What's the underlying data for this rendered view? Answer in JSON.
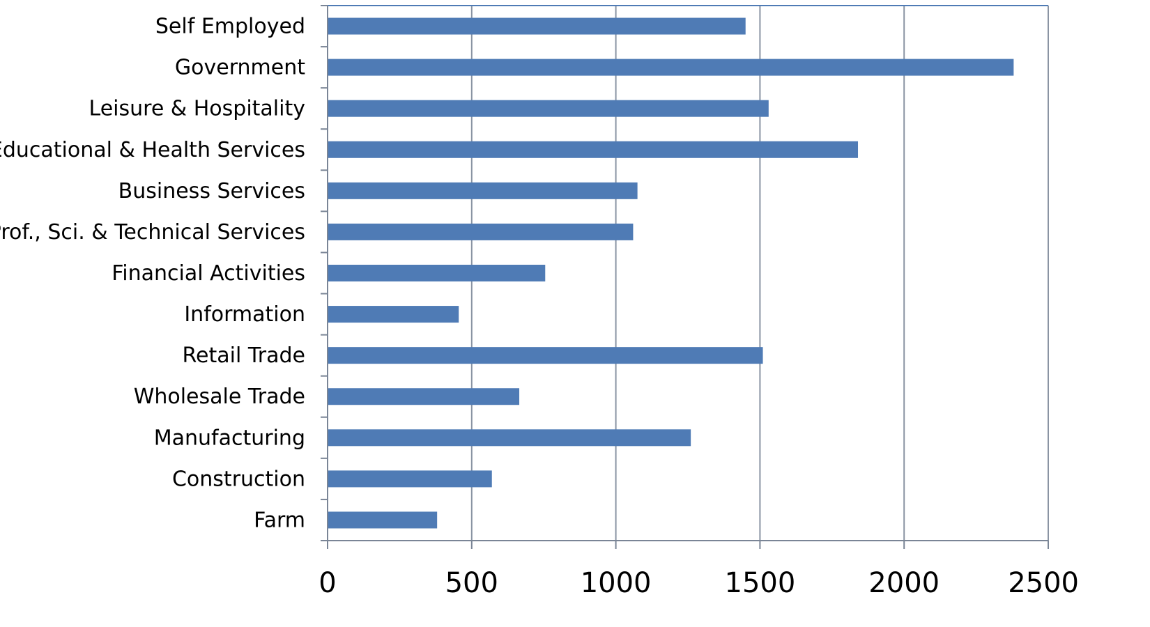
{
  "chart_data": {
    "type": "bar",
    "orientation": "horizontal",
    "title": "",
    "xlabel": "",
    "ylabel": "",
    "categories": [
      "Self Employed",
      "Government",
      "Leisure & Hospitality",
      "Educational & Health Services",
      "Business Services",
      "Prof., Sci. & Technical Services",
      "Financial Activities",
      "Information",
      "Retail Trade",
      "Wholesale Trade",
      "Manufacturing",
      "Construction",
      "Farm"
    ],
    "values": [
      1450,
      2380,
      1530,
      1840,
      1075,
      1060,
      755,
      455,
      1510,
      665,
      1260,
      570,
      380
    ],
    "xlim": [
      0,
      2500
    ],
    "xticks": [
      "0",
      "500",
      "1000",
      "1500",
      "2000",
      "2500"
    ],
    "grid": "vertical",
    "legend": "none",
    "colors": {
      "bar": "#4F7BB5",
      "grid": "#8A94A3",
      "axis": "#7A8596",
      "frame": "#4F7BB5"
    }
  }
}
